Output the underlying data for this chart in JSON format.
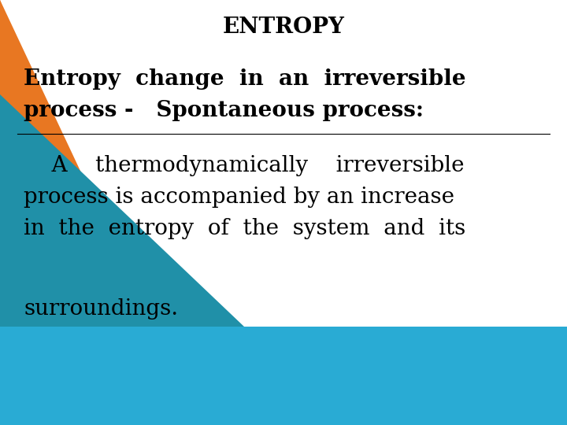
{
  "title": "ENTROPY",
  "subtitle_line1": "Entropy  change  in  an  irreversible",
  "subtitle_line2": "process -   Spontaneous process:",
  "body_line1": "    A    thermodynamically    irreversible",
  "body_line2": "process is accompanied by an increase",
  "body_line3": "in  the  entropy  of  the  system  and  its",
  "body_line4": "surroundings.",
  "background_color": "#ffffff",
  "title_fontsize": 20,
  "subtitle_fontsize": 20,
  "body_fontsize": 20,
  "text_color": "#000000",
  "orange_color": "#E87722",
  "cyan_color": "#29ABD4",
  "teal_color": "#2090A8",
  "fig_width": 7.2,
  "fig_height": 5.4
}
